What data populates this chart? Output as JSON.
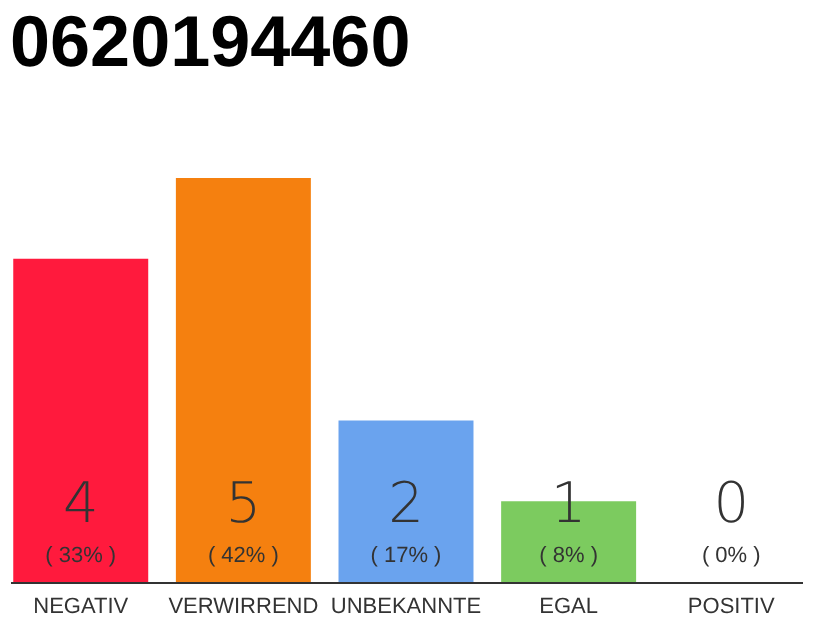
{
  "chart_data": {
    "type": "bar",
    "title": "0620194460",
    "categories": [
      "NEGATIV",
      "VERWIRREND",
      "UNBEKANNTE",
      "EGAL",
      "POSITIV"
    ],
    "values": [
      4,
      5,
      2,
      1,
      0
    ],
    "colors": [
      "#ff1a3d",
      "#f5800f",
      "#6aa3ee",
      "#7ccb5f",
      "#cccccc"
    ],
    "data_labels": true,
    "annotations": [
      "( 33% )",
      "( 42% )",
      "( 17% )",
      "( 8% )",
      "( 0% )"
    ]
  }
}
